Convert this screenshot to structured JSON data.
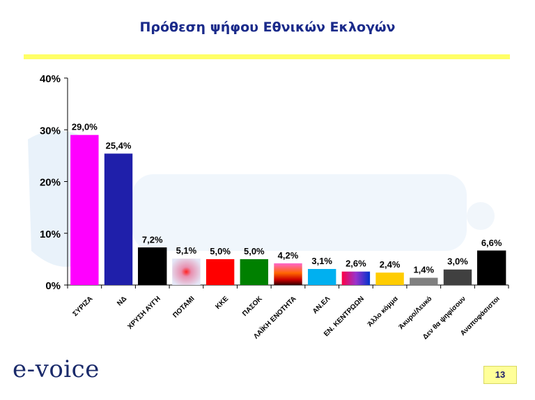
{
  "page": {
    "title": "Πρόθεση ψήφου Εθνικών Εκλογών",
    "logo": "e-voice",
    "page_number": "13"
  },
  "chart_data": {
    "type": "bar",
    "ylim": [
      0,
      40
    ],
    "yticks": [
      0,
      10,
      20,
      30,
      40
    ],
    "ytick_labels": [
      "0%",
      "10%",
      "20%",
      "30%",
      "40%"
    ],
    "grid": false,
    "legend": "none",
    "categories": [
      "ΣΥΡΙΖΑ",
      "ΝΔ",
      "ΧΡΥΣΗ ΑΥΓΗ",
      "ΠΟΤΑΜΙ",
      "ΚΚΕ",
      "ΠΑΣΟΚ",
      "ΛΑΪΚΗ ΕΝΟΤΗΤΑ",
      "ΑΝ.ΕΛ",
      "ΕΝ. ΚΕΝΤΡΩΩΝ",
      "Άλλο κόμμα",
      "Άκυρο/Λευκό",
      "Δεν θα ψηφίσουν",
      "Αναποφάσιστοι"
    ],
    "values": [
      29.0,
      25.4,
      7.2,
      5.1,
      5.0,
      5.0,
      4.2,
      3.1,
      2.6,
      2.4,
      1.4,
      3.0,
      6.6
    ],
    "value_labels": [
      "29,0%",
      "25,4%",
      "7,2%",
      "5,1%",
      "5,0%",
      "5,0%",
      "4,2%",
      "3,1%",
      "2,6%",
      "2,4%",
      "1,4%",
      "3,0%",
      "6,6%"
    ],
    "colors": [
      "#ff00ff",
      "#1f1faa",
      "#000000",
      "#e9e9f4",
      "#ff0000",
      "#008000",
      "gradient-laiki",
      "#00b0f0",
      "gradient-enkentroon",
      "#ffcc00",
      "#808080",
      "#404040",
      "#000000"
    ]
  }
}
